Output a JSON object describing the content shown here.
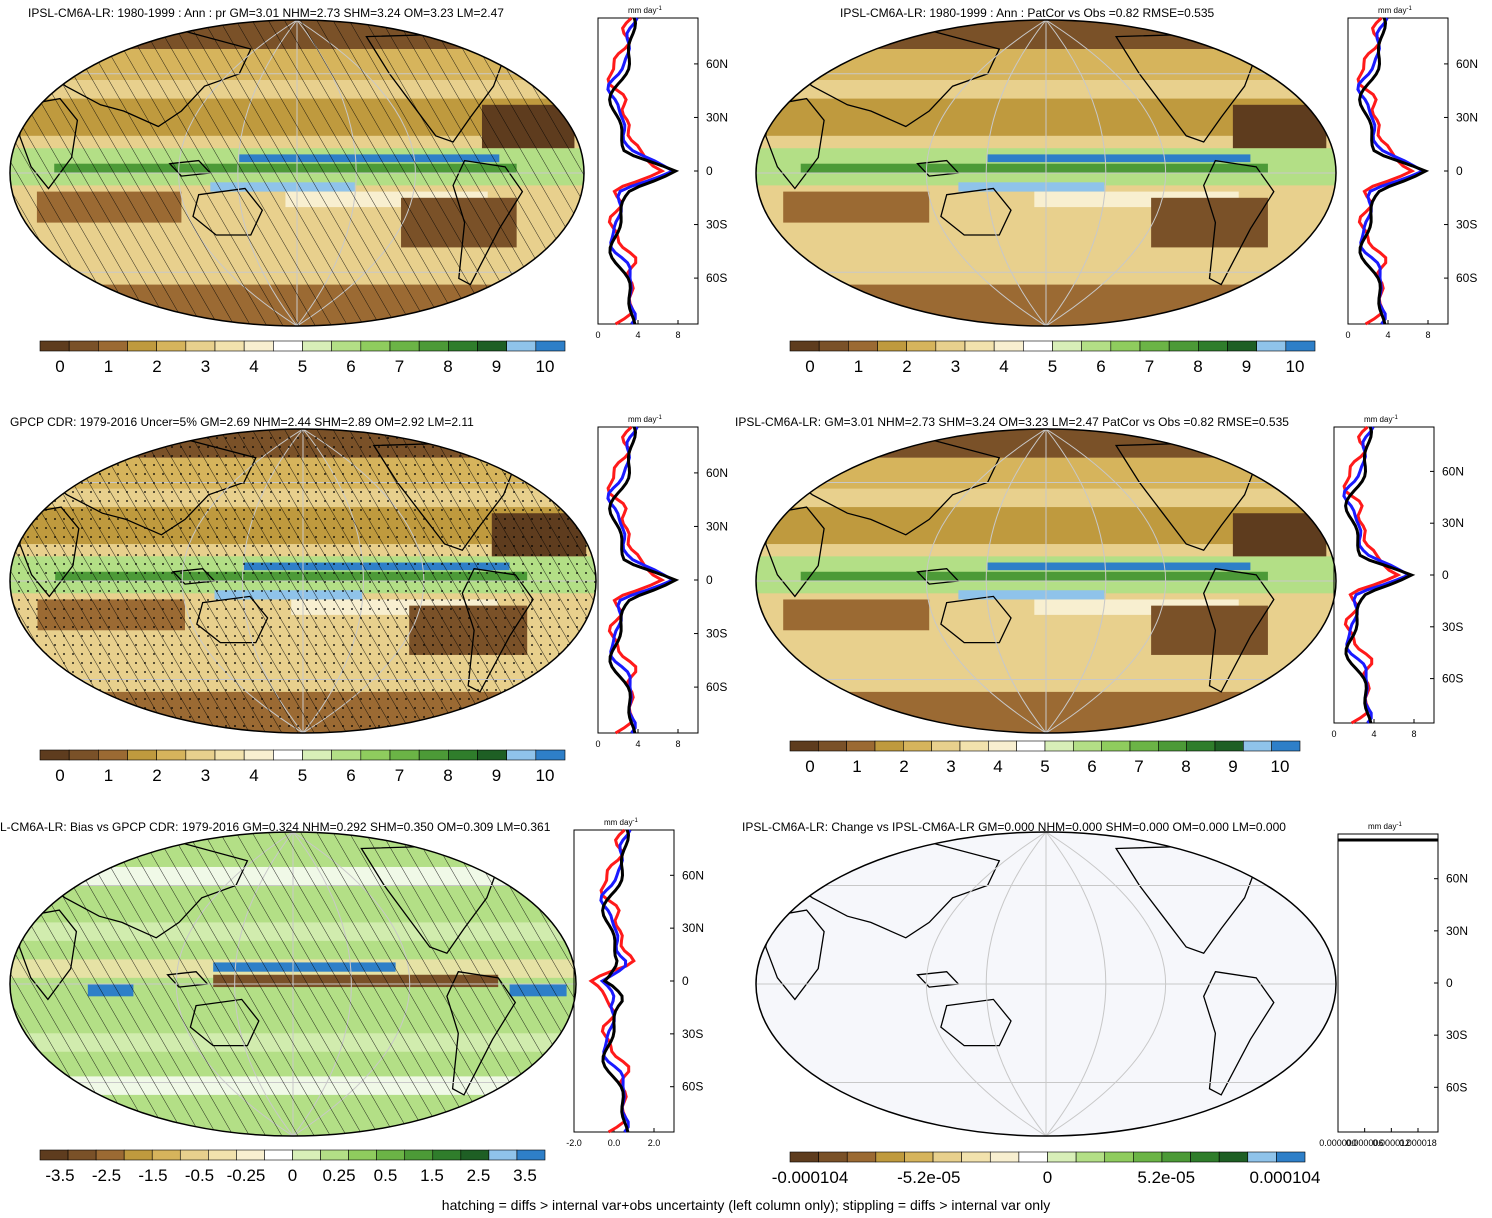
{
  "panels": [
    {
      "title": "IPSL-CM6A-LR: 1980-1999 : Ann : pr GM=3.01 NHM=2.73 SHM=3.24 OM=3.23 LM=2.47",
      "kind": "precip",
      "hatch": true,
      "stipple": false,
      "colorbar_labels": [
        "0",
        "1",
        "2",
        "3",
        "4",
        "5",
        "6",
        "7",
        "8",
        "9",
        "10"
      ],
      "zonal": {
        "units": "mm day",
        "units_sup": "-1",
        "xticks": [
          "0",
          "4",
          "8"
        ],
        "lat_labels": [
          "60N",
          "30N",
          "0",
          "30S",
          "60S"
        ]
      }
    },
    {
      "title": "IPSL-CM6A-LR: 1980-1999 : Ann : PatCor vs Obs =0.82 RMSE=0.535",
      "kind": "precip",
      "hatch": false,
      "stipple": false,
      "colorbar_labels": [
        "0",
        "1",
        "2",
        "3",
        "4",
        "5",
        "6",
        "7",
        "8",
        "9",
        "10"
      ],
      "zonal": {
        "units": "mm day",
        "units_sup": "-1",
        "xticks": [
          "0",
          "4",
          "8"
        ],
        "lat_labels": [
          "60N",
          "30N",
          "0",
          "30S",
          "60S"
        ]
      }
    },
    {
      "title": "GPCP CDR: 1979-2016 Uncer=5% GM=2.69 NHM=2.44 SHM=2.89 OM=2.92 LM=2.11",
      "kind": "precip",
      "hatch": true,
      "stipple": true,
      "colorbar_labels": [
        "0",
        "1",
        "2",
        "3",
        "4",
        "5",
        "6",
        "7",
        "8",
        "9",
        "10"
      ],
      "zonal": {
        "units": "mm day",
        "units_sup": "-1",
        "xticks": [
          "0",
          "4",
          "8"
        ],
        "lat_labels": [
          "60N",
          "30N",
          "0",
          "30S",
          "60S"
        ]
      }
    },
    {
      "title": "IPSL-CM6A-LR: GM=3.01 NHM=2.73 SHM=3.24 OM=3.23 LM=2.47 PatCor vs Obs =0.82 RMSE=0.535",
      "kind": "precip",
      "hatch": false,
      "stipple": false,
      "colorbar_labels": [
        "0",
        "1",
        "2",
        "3",
        "4",
        "5",
        "6",
        "7",
        "8",
        "9",
        "10"
      ],
      "zonal": {
        "units": "mm day",
        "units_sup": "-1",
        "xticks": [
          "0",
          "4",
          "8"
        ],
        "lat_labels": [
          "60N",
          "30N",
          "0",
          "30S",
          "60S"
        ]
      }
    },
    {
      "title": "L-CM6A-LR: Bias vs GPCP CDR: 1979-2016 GM=0.324 NHM=0.292 SHM=0.350 OM=0.309 LM=0.361",
      "kind": "bias",
      "hatch": true,
      "stipple": false,
      "colorbar_labels": [
        "-3.5",
        "-2.5",
        "-1.5",
        "-0.5",
        "-0.25",
        "0",
        "0.25",
        "0.5",
        "1.5",
        "2.5",
        "3.5"
      ],
      "zonal": {
        "units": "mm day",
        "units_sup": "-1",
        "xticks": [
          "-2.0",
          "0.0",
          "2.0"
        ],
        "lat_labels": [
          "60N",
          "30N",
          "0",
          "30S",
          "60S"
        ]
      }
    },
    {
      "title": "IPSL-CM6A-LR: Change vs IPSL-CM6A-LR GM=0.000 NHM=0.000 SHM=0.000 OM=0.000 LM=0.000",
      "kind": "change",
      "hatch": false,
      "stipple": false,
      "colorbar_labels": [
        "-0.000104",
        "-5.2e-05",
        "0",
        "5.2e-05",
        "0.000104"
      ],
      "zonal": {
        "units": "mm day",
        "units_sup": "-1",
        "xticks": [
          "0.000000",
          "0.000006",
          "0.000012",
          "0.000018"
        ],
        "lat_labels": [
          "60N",
          "30N",
          "0",
          "30S",
          "60S"
        ]
      }
    }
  ],
  "colors": {
    "precip_scale": [
      "#5e3c1e",
      "#7a5128",
      "#9b6a33",
      "#bf9a3e",
      "#d6b45c",
      "#e8d08d",
      "#f2e2ad",
      "#f8efd0",
      "#ffffff",
      "#d8efb8",
      "#b3df86",
      "#8fcc5e",
      "#6bb446",
      "#4c9a37",
      "#2f7d2b",
      "#1e5f24",
      "#8fc3ea",
      "#2e7fc8"
    ],
    "line_model": "#000000",
    "line_obs_a": "#1a1aff",
    "line_obs_b": "#ff1a1a"
  },
  "footer": "hatching = diffs > internal var+obs uncertainty (left column only); stippling = diffs > internal var only"
}
